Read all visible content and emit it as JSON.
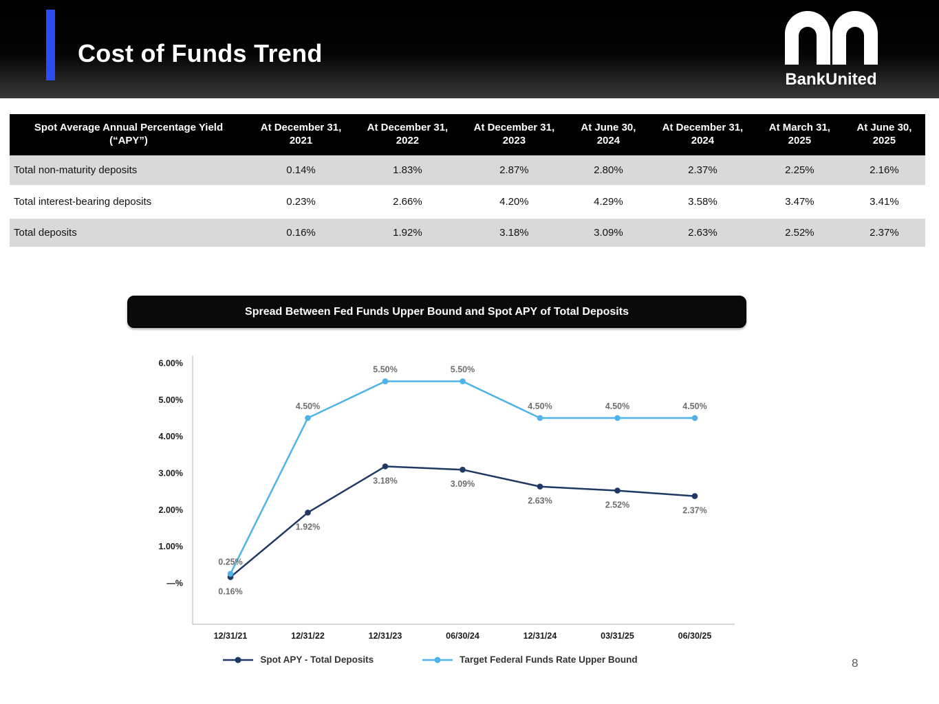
{
  "colors": {
    "accent": "#2b4df0",
    "navy": "#1f3864",
    "light_blue": "#4db3e8",
    "row_stripe": "#d9d9d9",
    "table_header_bg": "#000000"
  },
  "slide": {
    "title": "Cost of Funds Trend",
    "logo_text": "BankUnited",
    "page_number": "8"
  },
  "table": {
    "header": [
      "Spot Average Annual Percentage Yield (“APY”)",
      "At December 31, 2021",
      "At December 31, 2022",
      "At December 31, 2023",
      "At June 30, 2024",
      "At December 31, 2024",
      "At March 31, 2025",
      "At June 30, 2025"
    ],
    "rows": [
      {
        "label": "Total non-maturity deposits",
        "values": [
          "0.14%",
          "1.83%",
          "2.87%",
          "2.80%",
          "2.37%",
          "2.25%",
          "2.16%"
        ]
      },
      {
        "label": "Total interest-bearing deposits",
        "values": [
          "0.23%",
          "2.66%",
          "4.20%",
          "4.29%",
          "3.58%",
          "3.47%",
          "3.41%"
        ]
      },
      {
        "label": "Total deposits",
        "values": [
          "0.16%",
          "1.92%",
          "3.18%",
          "3.09%",
          "2.63%",
          "2.52%",
          "2.37%"
        ]
      }
    ]
  },
  "chart_title": "Spread Between Fed Funds Upper Bound and Spot APY of Total Deposits",
  "chart_data": {
    "type": "line",
    "categories": [
      "12/31/21",
      "12/31/22",
      "12/31/23",
      "06/30/24",
      "12/31/24",
      "03/31/25",
      "06/30/25"
    ],
    "series": [
      {
        "name": "Spot APY - Total Deposits",
        "color": "#1f3864",
        "values": [
          0.16,
          1.92,
          3.18,
          3.09,
          2.63,
          2.52,
          2.37
        ],
        "labels": [
          "0.16%",
          "1.92%",
          "3.18%",
          "3.09%",
          "2.63%",
          "2.52%",
          "2.37%"
        ],
        "label_position": "below"
      },
      {
        "name": "Target Federal Funds Rate Upper Bound",
        "color": "#4db3e8",
        "values": [
          0.25,
          4.5,
          5.5,
          5.5,
          4.5,
          4.5,
          4.5
        ],
        "labels": [
          "0.25%",
          "4.50%",
          "5.50%",
          "5.50%",
          "4.50%",
          "4.50%",
          "4.50%"
        ],
        "label_position": "above"
      }
    ],
    "y_ticks": [
      "6.00%",
      "5.00%",
      "4.00%",
      "3.00%",
      "2.00%",
      "1.00%",
      "—%"
    ],
    "ylim": [
      0,
      6
    ],
    "grid": false,
    "legend_position": "bottom"
  }
}
